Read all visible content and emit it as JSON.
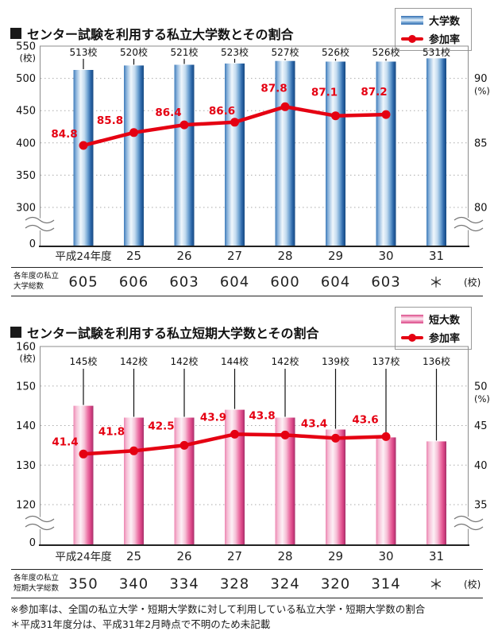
{
  "colors": {
    "bar_blue": "#3f7cba",
    "bar_pink": "#ec74a6",
    "line_red": "#e50012",
    "grid_gray": "#aaaaaa"
  },
  "footnotes": [
    "※参加率は、全国の私立大学・短期大学数に対して利用している私立大学・短期大学数の割合",
    "＊平成31年度分は、平成31年2月時点で不明のため未記載"
  ],
  "chart_data": [
    {
      "type": "bar+line",
      "title": "センター試験を利用する私立大学数とその割合",
      "categories": [
        "平成24年度",
        "25",
        "26",
        "27",
        "28",
        "29",
        "30",
        "31"
      ],
      "series": [
        {
          "name": "大学数",
          "type": "bar",
          "unit": "校",
          "values": [
            513,
            520,
            521,
            523,
            527,
            526,
            526,
            531
          ],
          "labels": [
            "513校",
            "520校",
            "521校",
            "523校",
            "527校",
            "526校",
            "526校",
            "531校"
          ]
        },
        {
          "name": "参加率",
          "type": "line",
          "unit": "%",
          "values": [
            84.8,
            85.8,
            86.4,
            86.6,
            87.8,
            87.1,
            87.2,
            null
          ],
          "labels": [
            "84.8",
            "85.8",
            "86.4",
            "86.6",
            "87.8",
            "87.1",
            "87.2"
          ]
        }
      ],
      "left_axis": {
        "unit": "(校)",
        "ticks": [
          550,
          500,
          450,
          400,
          350,
          300
        ],
        "zero_label": "0",
        "axis_break": true
      },
      "right_axis": {
        "unit": "(%)",
        "ticks": [
          90,
          85,
          80
        ],
        "aligned_with_left_ticks": [
          500,
          400,
          300
        ]
      },
      "table": {
        "row_label_lines": [
          "各年度の私立",
          "大学総数"
        ],
        "values": [
          "605",
          "606",
          "603",
          "604",
          "600",
          "604",
          "603",
          "＊"
        ],
        "unit": "(校)"
      }
    },
    {
      "type": "bar+line",
      "title": "センター試験を利用する私立短期大学数とその割合",
      "categories": [
        "平成24年度",
        "25",
        "26",
        "27",
        "28",
        "29",
        "30",
        "31"
      ],
      "series": [
        {
          "name": "短大数",
          "type": "bar",
          "unit": "校",
          "values": [
            145,
            142,
            142,
            144,
            142,
            139,
            137,
            136
          ],
          "labels": [
            "145校",
            "142校",
            "142校",
            "144校",
            "142校",
            "139校",
            "137校",
            "136校"
          ]
        },
        {
          "name": "参加率",
          "type": "line",
          "unit": "%",
          "values": [
            41.4,
            41.8,
            42.5,
            43.9,
            43.8,
            43.4,
            43.6,
            null
          ],
          "labels": [
            "41.4",
            "41.8",
            "42.5",
            "43.9",
            "43.8",
            "43.4",
            "43.6"
          ]
        }
      ],
      "left_axis": {
        "unit": "(校)",
        "ticks": [
          160,
          150,
          140,
          130,
          120
        ],
        "zero_label": "0",
        "axis_break": true
      },
      "right_axis": {
        "unit": "(%)",
        "ticks": [
          50,
          45,
          40,
          35
        ],
        "aligned_with_left_ticks": [
          150,
          140,
          130,
          120
        ]
      },
      "table": {
        "row_label_lines": [
          "各年度の私立",
          "短期大学総数"
        ],
        "values": [
          "350",
          "340",
          "334",
          "328",
          "324",
          "320",
          "314",
          "＊"
        ],
        "unit": "(校)"
      }
    }
  ]
}
